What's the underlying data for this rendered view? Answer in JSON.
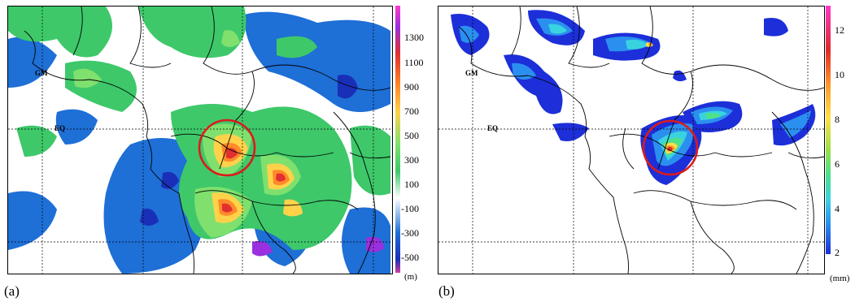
{
  "panels": [
    {
      "label": "(a)",
      "unit": "(m)",
      "colorbar_ticks": [
        "1300",
        "1100",
        "900",
        "700",
        "500",
        "300",
        "100",
        "-100",
        "-300",
        "-500"
      ],
      "place_labels": [
        "GM",
        "EQ"
      ]
    },
    {
      "label": "(b)",
      "unit": "(mm)",
      "colorbar_ticks": [
        "12",
        "10",
        "8",
        "6",
        "4",
        "2"
      ],
      "place_labels": [
        "GM",
        "EQ"
      ]
    }
  ],
  "colors": {
    "highlight_circle": "#dd1a1a",
    "scale_a": [
      "#1e6fd6",
      "#ffffff",
      "#3ec86a",
      "#7fe06e",
      "#ffd24a",
      "#ff8a2a",
      "#e03030",
      "#d23ca0",
      "#9b30e0"
    ],
    "scale_b": [
      "#1d2fd8",
      "#2b8ff0",
      "#39d3e0",
      "#4fe08a",
      "#9be04a",
      "#ffe04a",
      "#ff9a2a",
      "#e02a2a",
      "#ff3ac8"
    ]
  }
}
